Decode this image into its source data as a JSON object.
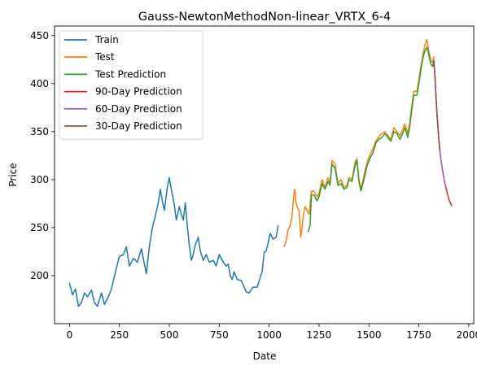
{
  "chart_data": {
    "type": "line",
    "title": "Gauss-NewtonMethodNon-linear_VRTX_6-4",
    "xlabel": "Date",
    "ylabel": "Price",
    "xlim": [
      -75,
      2025
    ],
    "ylim": [
      150,
      460
    ],
    "xticks": [
      0,
      250,
      500,
      750,
      1000,
      1250,
      1500,
      1750,
      2000
    ],
    "yticks": [
      200,
      250,
      300,
      350,
      400,
      450
    ],
    "legend_position": "upper left",
    "grid": false,
    "series": [
      {
        "name": "Train",
        "color": "#1f77b4",
        "points": [
          [
            0,
            192
          ],
          [
            15,
            180
          ],
          [
            30,
            186
          ],
          [
            45,
            168
          ],
          [
            60,
            172
          ],
          [
            75,
            182
          ],
          [
            90,
            178
          ],
          [
            110,
            185
          ],
          [
            125,
            172
          ],
          [
            140,
            168
          ],
          [
            160,
            182
          ],
          [
            175,
            170
          ],
          [
            195,
            178
          ],
          [
            210,
            186
          ],
          [
            230,
            204
          ],
          [
            250,
            220
          ],
          [
            270,
            222
          ],
          [
            285,
            230
          ],
          [
            300,
            210
          ],
          [
            320,
            218
          ],
          [
            340,
            214
          ],
          [
            360,
            228
          ],
          [
            375,
            212
          ],
          [
            385,
            202
          ],
          [
            400,
            230
          ],
          [
            415,
            250
          ],
          [
            430,
            262
          ],
          [
            445,
            276
          ],
          [
            455,
            290
          ],
          [
            465,
            278
          ],
          [
            475,
            268
          ],
          [
            490,
            292
          ],
          [
            500,
            302
          ],
          [
            510,
            290
          ],
          [
            525,
            274
          ],
          [
            535,
            258
          ],
          [
            550,
            272
          ],
          [
            560,
            264
          ],
          [
            570,
            258
          ],
          [
            580,
            276
          ],
          [
            590,
            252
          ],
          [
            600,
            232
          ],
          [
            610,
            216
          ],
          [
            620,
            222
          ],
          [
            630,
            232
          ],
          [
            645,
            240
          ],
          [
            655,
            226
          ],
          [
            670,
            216
          ],
          [
            685,
            222
          ],
          [
            700,
            214
          ],
          [
            720,
            216
          ],
          [
            735,
            210
          ],
          [
            750,
            222
          ],
          [
            770,
            214
          ],
          [
            785,
            210
          ],
          [
            795,
            212
          ],
          [
            805,
            200
          ],
          [
            815,
            196
          ],
          [
            825,
            204
          ],
          [
            840,
            196
          ],
          [
            860,
            195
          ],
          [
            875,
            188
          ],
          [
            885,
            183
          ],
          [
            900,
            182
          ],
          [
            920,
            188
          ],
          [
            940,
            188
          ],
          [
            955,
            198
          ],
          [
            965,
            204
          ],
          [
            975,
            224
          ],
          [
            985,
            226
          ],
          [
            995,
            234
          ],
          [
            1005,
            244
          ],
          [
            1020,
            238
          ],
          [
            1035,
            240
          ],
          [
            1045,
            252
          ]
        ]
      },
      {
        "name": "Test",
        "color": "#ff7f0e",
        "points": [
          [
            1075,
            230
          ],
          [
            1085,
            236
          ],
          [
            1095,
            248
          ],
          [
            1105,
            252
          ],
          [
            1115,
            262
          ],
          [
            1122,
            280
          ],
          [
            1128,
            290
          ],
          [
            1135,
            276
          ],
          [
            1142,
            270
          ],
          [
            1150,
            268
          ],
          [
            1158,
            240
          ],
          [
            1164,
            248
          ],
          [
            1172,
            264
          ],
          [
            1180,
            272
          ],
          [
            1190,
            268
          ],
          [
            1200,
            264
          ],
          [
            1212,
            288
          ],
          [
            1225,
            288
          ],
          [
            1240,
            282
          ],
          [
            1250,
            286
          ],
          [
            1265,
            300
          ],
          [
            1280,
            292
          ],
          [
            1295,
            302
          ],
          [
            1305,
            296
          ],
          [
            1315,
            320
          ],
          [
            1330,
            316
          ],
          [
            1345,
            296
          ],
          [
            1360,
            300
          ],
          [
            1375,
            292
          ],
          [
            1390,
            294
          ],
          [
            1400,
            302
          ],
          [
            1415,
            300
          ],
          [
            1430,
            318
          ],
          [
            1440,
            322
          ],
          [
            1450,
            300
          ],
          [
            1460,
            290
          ],
          [
            1475,
            304
          ],
          [
            1490,
            318
          ],
          [
            1505,
            326
          ],
          [
            1520,
            332
          ],
          [
            1535,
            340
          ],
          [
            1550,
            345
          ],
          [
            1565,
            348
          ],
          [
            1580,
            350
          ],
          [
            1595,
            346
          ],
          [
            1610,
            342
          ],
          [
            1625,
            354
          ],
          [
            1640,
            350
          ],
          [
            1655,
            346
          ],
          [
            1665,
            350
          ],
          [
            1680,
            358
          ],
          [
            1695,
            348
          ],
          [
            1705,
            360
          ],
          [
            1715,
            378
          ],
          [
            1725,
            392
          ],
          [
            1740,
            392
          ],
          [
            1750,
            404
          ],
          [
            1760,
            418
          ],
          [
            1770,
            430
          ],
          [
            1780,
            440
          ],
          [
            1790,
            446
          ],
          [
            1800,
            434
          ],
          [
            1810,
            424
          ],
          [
            1820,
            422
          ],
          [
            1825,
            428
          ]
        ]
      },
      {
        "name": "Test Prediction",
        "color": "#2ca02c",
        "points": [
          [
            1195,
            246
          ],
          [
            1205,
            252
          ],
          [
            1212,
            284
          ],
          [
            1225,
            284
          ],
          [
            1240,
            278
          ],
          [
            1250,
            282
          ],
          [
            1265,
            296
          ],
          [
            1280,
            290
          ],
          [
            1295,
            298
          ],
          [
            1305,
            294
          ],
          [
            1315,
            316
          ],
          [
            1330,
            312
          ],
          [
            1345,
            294
          ],
          [
            1360,
            296
          ],
          [
            1375,
            290
          ],
          [
            1390,
            292
          ],
          [
            1400,
            300
          ],
          [
            1415,
            298
          ],
          [
            1430,
            314
          ],
          [
            1440,
            320
          ],
          [
            1450,
            298
          ],
          [
            1460,
            288
          ],
          [
            1475,
            300
          ],
          [
            1490,
            314
          ],
          [
            1505,
            322
          ],
          [
            1520,
            328
          ],
          [
            1535,
            338
          ],
          [
            1550,
            342
          ],
          [
            1565,
            344
          ],
          [
            1580,
            348
          ],
          [
            1595,
            344
          ],
          [
            1610,
            340
          ],
          [
            1625,
            350
          ],
          [
            1640,
            348
          ],
          [
            1655,
            342
          ],
          [
            1665,
            346
          ],
          [
            1680,
            354
          ],
          [
            1695,
            344
          ],
          [
            1705,
            356
          ],
          [
            1715,
            374
          ],
          [
            1725,
            388
          ],
          [
            1740,
            388
          ],
          [
            1750,
            400
          ],
          [
            1760,
            414
          ],
          [
            1770,
            426
          ],
          [
            1780,
            434
          ],
          [
            1790,
            438
          ],
          [
            1800,
            430
          ],
          [
            1810,
            420
          ],
          [
            1820,
            418
          ],
          [
            1825,
            424
          ]
        ]
      },
      {
        "name": "90-Day Prediction",
        "color": "#d62728",
        "points": [
          [
            1825,
            424
          ],
          [
            1830,
            410
          ],
          [
            1835,
            390
          ],
          [
            1840,
            372
          ],
          [
            1845,
            356
          ],
          [
            1850,
            342
          ],
          [
            1855,
            331
          ],
          [
            1860,
            322
          ],
          [
            1865,
            315
          ],
          [
            1870,
            308
          ],
          [
            1875,
            302
          ],
          [
            1880,
            297
          ],
          [
            1885,
            292
          ],
          [
            1890,
            288
          ],
          [
            1895,
            284
          ],
          [
            1900,
            280
          ],
          [
            1905,
            277
          ],
          [
            1910,
            275
          ],
          [
            1914,
            273
          ]
        ]
      },
      {
        "name": "60-Day Prediction",
        "color": "#9467bd",
        "points": [
          [
            1825,
            424
          ],
          [
            1830,
            410
          ],
          [
            1835,
            390
          ],
          [
            1840,
            372
          ],
          [
            1845,
            356
          ],
          [
            1850,
            342
          ],
          [
            1855,
            331
          ],
          [
            1860,
            322
          ],
          [
            1865,
            315
          ],
          [
            1870,
            308
          ],
          [
            1875,
            302
          ],
          [
            1880,
            297
          ],
          [
            1884,
            293
          ]
        ]
      },
      {
        "name": "30-Day Prediction",
        "color": "#8c564b",
        "points": [
          [
            1825,
            424
          ],
          [
            1830,
            410
          ],
          [
            1835,
            390
          ],
          [
            1840,
            372
          ],
          [
            1845,
            356
          ],
          [
            1850,
            342
          ],
          [
            1855,
            330
          ]
        ]
      }
    ]
  }
}
